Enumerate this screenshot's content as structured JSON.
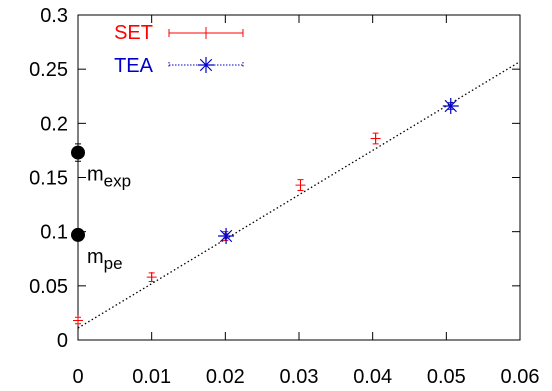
{
  "chart_data": {
    "type": "scatter",
    "title": "",
    "xlabel": "",
    "ylabel": "",
    "xlim": [
      0,
      0.06
    ],
    "ylim": [
      0,
      0.3
    ],
    "x_ticks": [
      0,
      0.01,
      0.02,
      0.03,
      0.04,
      0.05,
      0.06
    ],
    "x_tick_labels": [
      "0",
      "0.01",
      "0.02",
      "0.03",
      "0.04",
      "0.05",
      "0.06"
    ],
    "y_ticks": [
      0,
      0.05,
      0.1,
      0.15,
      0.2,
      0.25,
      0.3
    ],
    "y_tick_labels": [
      "0",
      "0.05",
      "0.1",
      "0.15",
      "0.2",
      "0.25",
      "0.3"
    ],
    "grid": false,
    "legend_placement": "top-left",
    "series": [
      {
        "name": "SET",
        "color": "#ff0000",
        "marker": "plus",
        "x": [
          0.0,
          0.01,
          0.02,
          0.0302,
          0.0404
        ],
        "y": [
          0.018,
          0.058,
          0.096,
          0.143,
          0.186
        ],
        "yerr": [
          0.003,
          0.004,
          0.004,
          0.005,
          0.005
        ]
      },
      {
        "name": "TEA",
        "color": "#0000cc",
        "marker": "star",
        "x": [
          0.0201,
          0.0506
        ],
        "y": [
          0.096,
          0.216
        ],
        "yerr": [
          0.002,
          0.003
        ]
      }
    ],
    "fit_line": {
      "color": "#000000",
      "style": "dotted",
      "x": [
        0,
        0.06
      ],
      "y": [
        0.011,
        0.257
      ]
    },
    "extra_points": [
      {
        "label_main": "m",
        "label_sub": "exp",
        "x": 0,
        "y": 0.173,
        "yerr": 0.008,
        "color": "#000000"
      },
      {
        "label_main": "m",
        "label_sub": "pe",
        "x": 0,
        "y": 0.097,
        "yerr": 0,
        "color": "#000000"
      }
    ]
  }
}
